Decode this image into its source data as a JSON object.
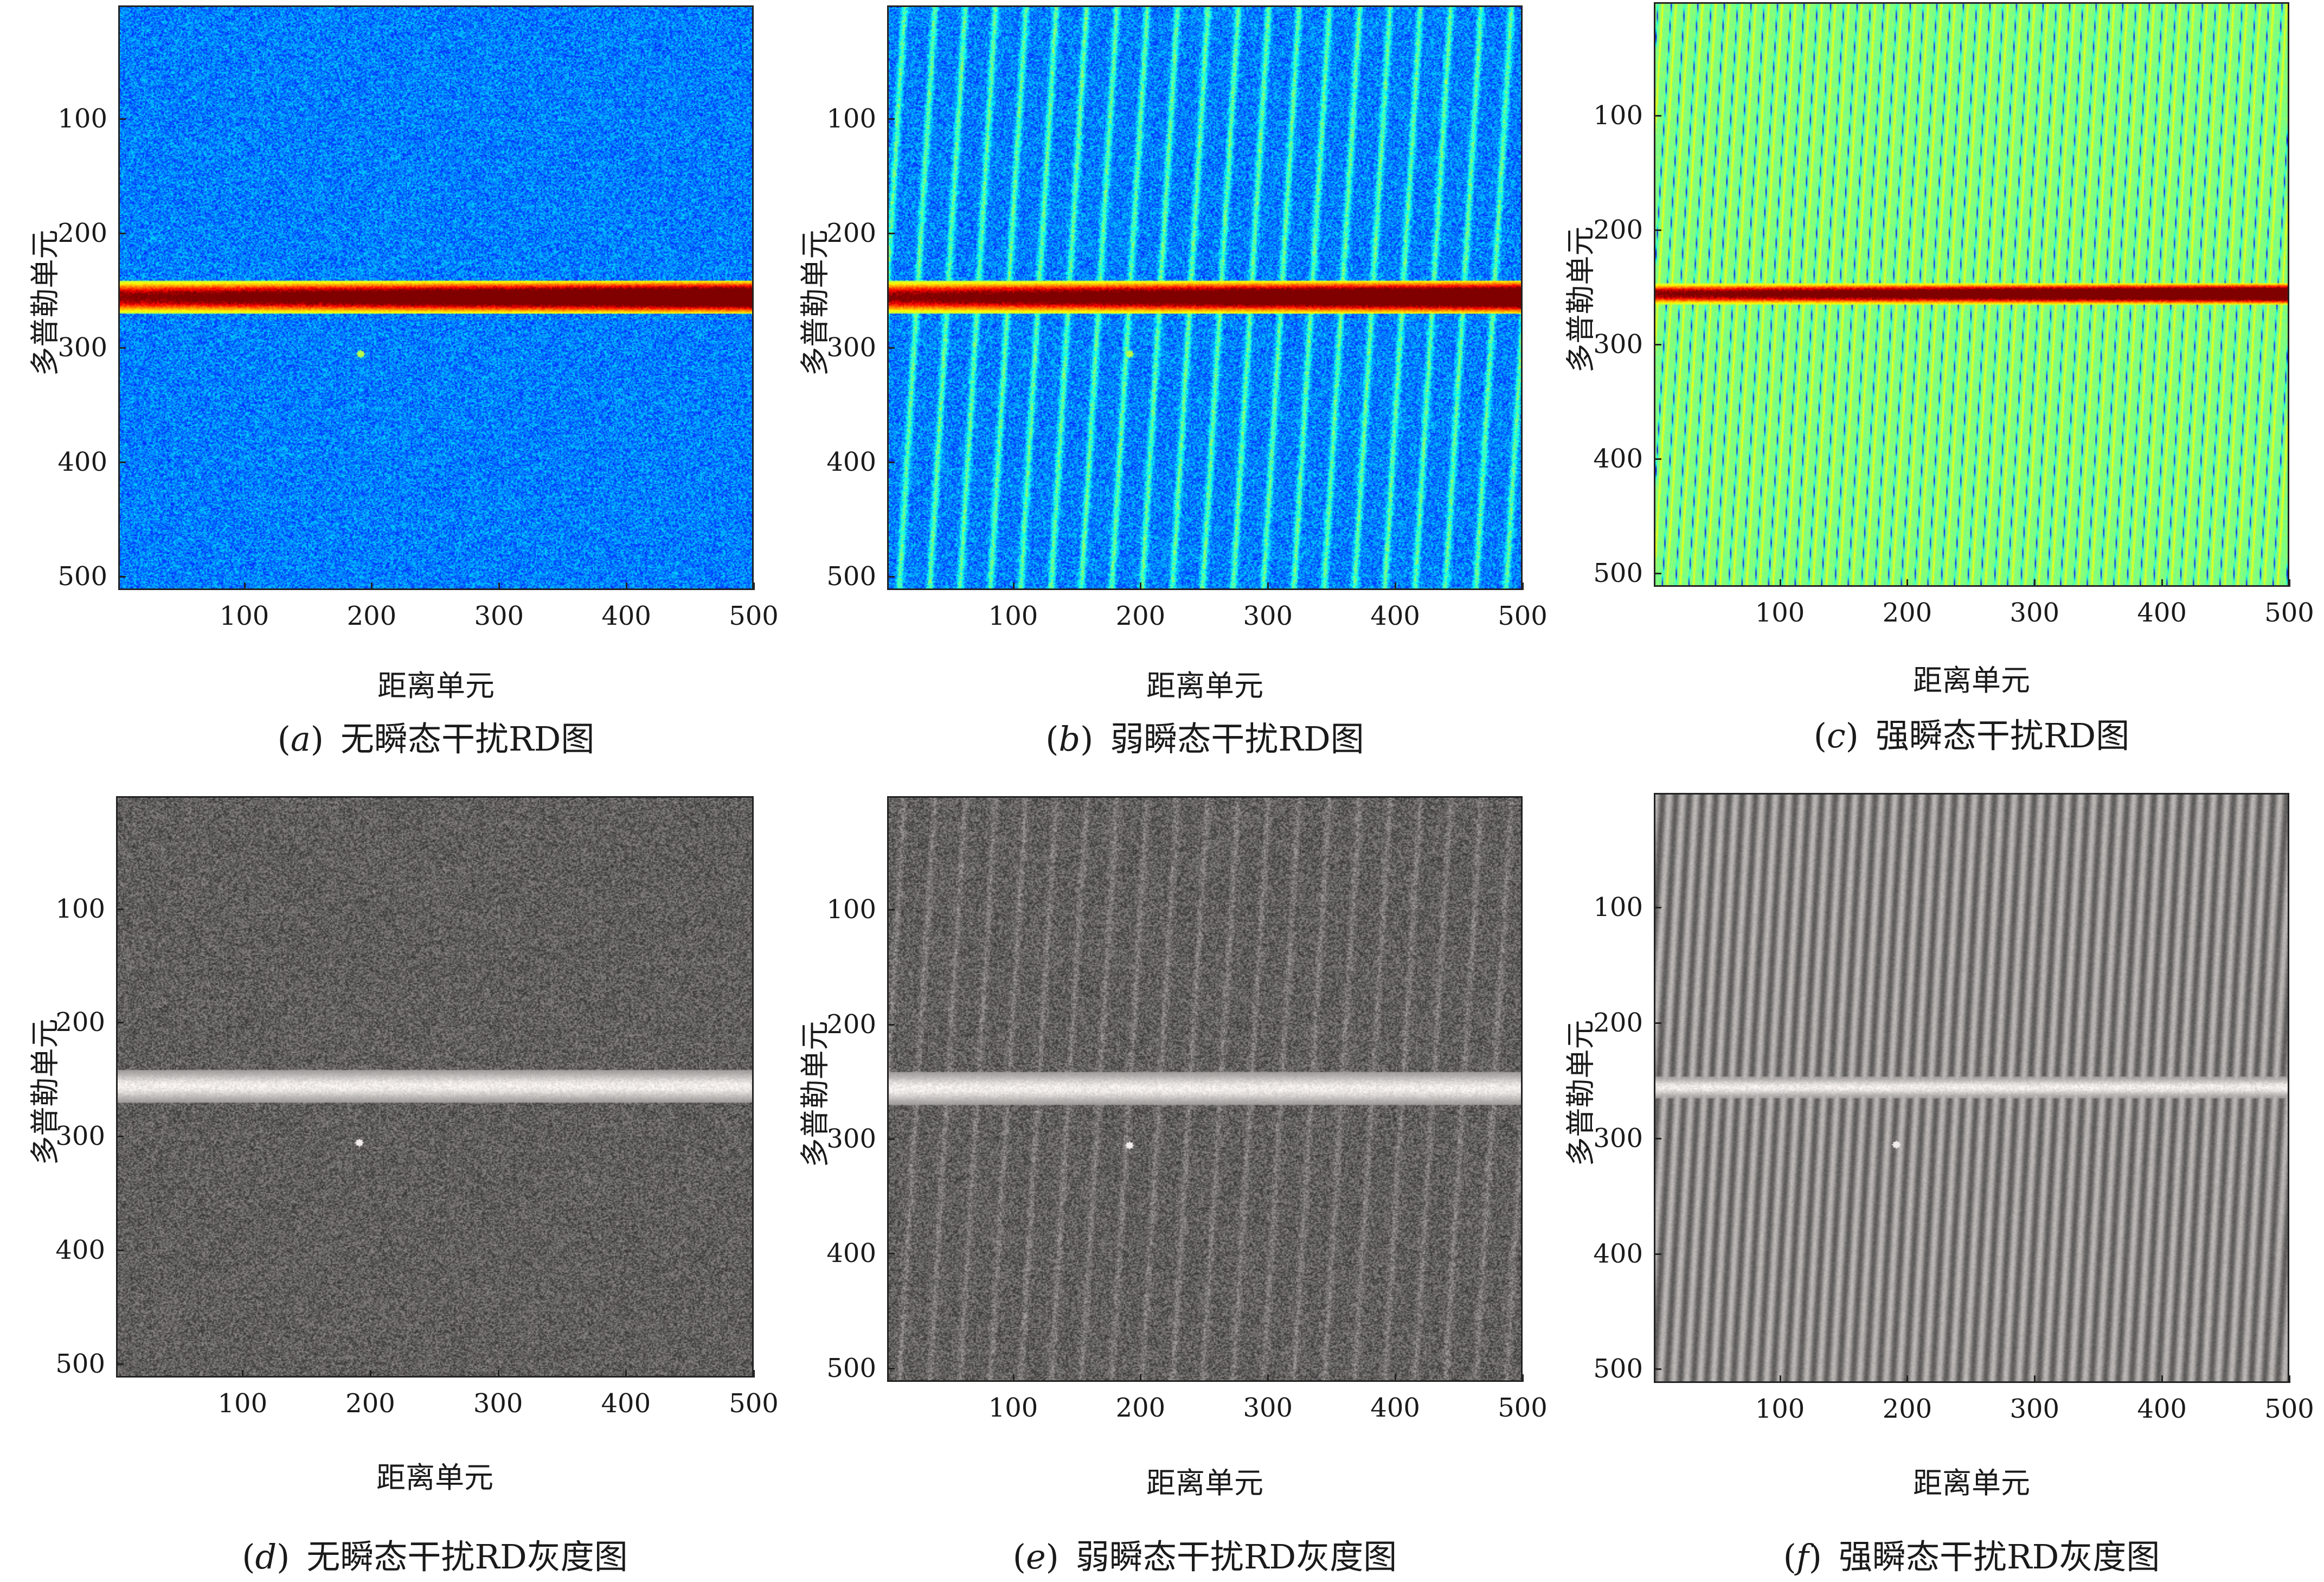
{
  "figure": {
    "axis_xlabel": "距离单元",
    "axis_ylabel": "多普勒单元",
    "x_ticks": [
      "100",
      "200",
      "300",
      "400",
      "500"
    ],
    "y_ticks": [
      "100",
      "200",
      "300",
      "400",
      "500"
    ]
  },
  "chart_data": [
    {
      "id": "a",
      "type": "heatmap",
      "colormap": "jet",
      "interference": "none",
      "caption_letter": "a",
      "caption_text": "无瞬态干扰RD图",
      "xlabel": "距离单元",
      "ylabel": "多普勒单元",
      "xlim": [
        1,
        500
      ],
      "ylim": [
        512,
        1
      ],
      "x_ticks": [
        100,
        200,
        300,
        400,
        500
      ],
      "y_ticks": [
        100,
        200,
        300,
        400,
        500
      ],
      "clutter_band_doppler": 255,
      "point_target": {
        "range": 190,
        "doppler": 305
      }
    },
    {
      "id": "b",
      "type": "heatmap",
      "colormap": "jet",
      "interference": "weak",
      "caption_letter": "b",
      "caption_text": "弱瞬态干扰RD图",
      "xlabel": "距离单元",
      "ylabel": "多普勒单元",
      "xlim": [
        1,
        500
      ],
      "ylim": [
        512,
        1
      ],
      "x_ticks": [
        100,
        200,
        300,
        400,
        500
      ],
      "y_ticks": [
        100,
        200,
        300,
        400,
        500
      ],
      "clutter_band_doppler": 255,
      "point_target": {
        "range": 190,
        "doppler": 305
      }
    },
    {
      "id": "c",
      "type": "heatmap",
      "colormap": "jet",
      "interference": "strong",
      "caption_letter": "c",
      "caption_text": "强瞬态干扰RD图",
      "xlabel": "距离单元",
      "ylabel": "多普勒单元",
      "xlim": [
        1,
        500
      ],
      "ylim": [
        512,
        1
      ],
      "x_ticks": [
        100,
        200,
        300,
        400,
        500
      ],
      "y_ticks": [
        100,
        200,
        300,
        400,
        500
      ],
      "clutter_band_doppler": 255,
      "point_target": null
    },
    {
      "id": "d",
      "type": "heatmap",
      "colormap": "gray",
      "interference": "none",
      "caption_letter": "d",
      "caption_text": "无瞬态干扰RD灰度图",
      "xlabel": "距离单元",
      "ylabel": "多普勒单元",
      "xlim": [
        1,
        500
      ],
      "ylim": [
        512,
        1
      ],
      "x_ticks": [
        100,
        200,
        300,
        400,
        500
      ],
      "y_ticks": [
        100,
        200,
        300,
        400,
        500
      ],
      "clutter_band_doppler": 255,
      "point_target": {
        "range": 190,
        "doppler": 305
      }
    },
    {
      "id": "e",
      "type": "heatmap",
      "colormap": "gray",
      "interference": "weak",
      "caption_letter": "e",
      "caption_text": "弱瞬态干扰RD灰度图",
      "xlabel": "距离单元",
      "ylabel": "多普勒单元",
      "xlim": [
        1,
        500
      ],
      "ylim": [
        512,
        1
      ],
      "x_ticks": [
        100,
        200,
        300,
        400,
        500
      ],
      "y_ticks": [
        100,
        200,
        300,
        400,
        500
      ],
      "clutter_band_doppler": 255,
      "point_target": {
        "range": 190,
        "doppler": 305
      }
    },
    {
      "id": "f",
      "type": "heatmap",
      "colormap": "gray",
      "interference": "strong",
      "caption_letter": "f",
      "caption_text": "强瞬态干扰RD灰度图",
      "xlabel": "距离单元",
      "ylabel": "多普勒单元",
      "xlim": [
        1,
        500
      ],
      "ylim": [
        512,
        1
      ],
      "x_ticks": [
        100,
        200,
        300,
        400,
        500
      ],
      "y_ticks": [
        100,
        200,
        300,
        400,
        500
      ],
      "clutter_band_doppler": 255,
      "point_target": {
        "range": 190,
        "doppler": 305
      }
    }
  ]
}
